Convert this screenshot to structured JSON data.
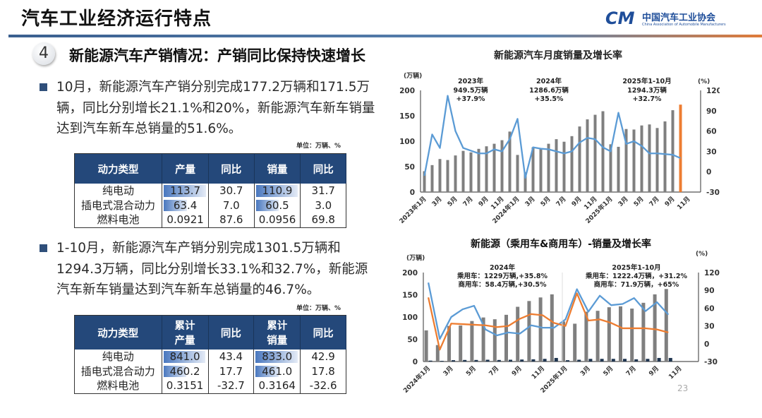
{
  "slide": {
    "title": "汽车工业经济运行特点",
    "logo": {
      "cn": "中国汽车工业协会",
      "en": "China Association of Automobile Manufacturers",
      "mark": "CM"
    },
    "section_number": "4",
    "heading": "新能源汽车产销情况：产销同比保持快速增长",
    "page_number": "23"
  },
  "paragraph1": "10月，新能源汽车产销分别完成177.2万辆和171.5万辆，同比分别增长21.1%和20%，新能源汽车新车销量达到汽车新车总销量的51.6%。",
  "paragraph2": "1-10月，新能源汽车产销分别完成1301.5万辆和1294.3万辆，同比分别增长33.1%和32.7%，新能源汽车新车销量达到汽车新车总销量的46.7%。",
  "table1": {
    "unit": "单位：万辆、%",
    "headers": [
      "动力类型",
      "产量",
      "同比",
      "销量",
      "同比"
    ],
    "rows": [
      [
        "纯电动",
        "113.7",
        "30.7",
        "110.9",
        "31.7"
      ],
      [
        "插电式混合动力",
        "63.4",
        "7.0",
        "60.5",
        "3.0"
      ],
      [
        "燃料电池",
        "0.0921",
        "87.6",
        "0.0956",
        "69.8"
      ]
    ]
  },
  "table2": {
    "unit": "单位：万辆、%",
    "headers": [
      "动力类型",
      "累计\n产量",
      "同比",
      "累计\n销量",
      "同比"
    ],
    "rows": [
      [
        "纯电动",
        "841.0",
        "43.4",
        "833.0",
        "42.9"
      ],
      [
        "插电式混合动力",
        "460.2",
        "17.7",
        "461.0",
        "17.8"
      ],
      [
        "燃料电池",
        "0.3151",
        "-32.7",
        "0.3164",
        "-32.6"
      ]
    ]
  },
  "chart_data": [
    {
      "type": "bar+line",
      "title": "新能源汽车月度销量及增长率",
      "ylabel": "(万辆)",
      "y2label": "(%)",
      "ylim": [
        0,
        200
      ],
      "y2lim": [
        -30,
        120
      ],
      "yticks": [
        "0",
        "50",
        "100",
        "150",
        "200"
      ],
      "y2ticks": [
        "-30",
        "0",
        "30",
        "60",
        "90",
        "120"
      ],
      "xticklabels": [
        "2023年1月",
        "3月",
        "5月",
        "7月",
        "9月",
        "11月",
        "2024年1月",
        "3月",
        "5月",
        "7月",
        "9月",
        "11月",
        "2025年1月",
        "3月",
        "5月",
        "7月",
        "9月",
        "11月"
      ],
      "category_count": 36,
      "grid": false,
      "colors": {
        "bars": "#808080",
        "highlight_bar": "#ed7d31",
        "line": "#5b9bd5"
      },
      "series": [
        {
          "kind": "bar",
          "values": [
            41,
            53,
            65,
            63,
            72,
            81,
            78,
            85,
            90,
            95,
            102,
            119,
            73,
            39,
            88,
            85,
            95,
            104,
            99,
            110,
            129,
            143,
            152,
            159,
            94,
            89,
            124,
            123,
            131,
            133,
            126,
            139,
            161,
            172
          ]
        },
        {
          "kind": "line",
          "axis": "right",
          "values": [
            -6,
            55,
            35,
            112,
            60,
            35,
            31,
            27,
            27,
            33,
            30,
            48,
            78,
            -9,
            36,
            34,
            33,
            30,
            27,
            30,
            43,
            50,
            48,
            36,
            30,
            87,
            41,
            45,
            38,
            27,
            27,
            26,
            25,
            20
          ]
        }
      ],
      "annotations": [
        {
          "lines": [
            "2023年",
            "949.5万辆",
            "+37.9%"
          ]
        },
        {
          "lines": [
            "2024年",
            "1286.6万辆",
            "+35.5%"
          ]
        },
        {
          "lines": [
            "2025年1-10月",
            "1294.3万辆",
            "+32.7%"
          ]
        }
      ]
    },
    {
      "type": "bar+line",
      "title": "新能源（乘用车&商用车）-销量及增长率",
      "ylabel": "(万辆)",
      "y2label": "(%)",
      "ylim": [
        0,
        200
      ],
      "y2lim": [
        -30,
        120
      ],
      "yticks": [
        "0",
        "50",
        "100",
        "150",
        "200"
      ],
      "y2ticks": [
        "-30",
        "0",
        "30",
        "60",
        "90",
        "120"
      ],
      "xticklabels": [
        "2024年1月",
        "3月",
        "5月",
        "7月",
        "9月",
        "11月",
        "2025年1月",
        "3月",
        "5月",
        "7月",
        "9月",
        "11月"
      ],
      "category_count": 24,
      "grid": false,
      "colors": {
        "passenger_bar": "#808080",
        "commercial_bar": "#1f3550",
        "blue_line": "#5b9bd5",
        "orange_line": "#ed7d31"
      },
      "series": [
        {
          "kind": "bar",
          "values": [
            70,
            37,
            80,
            81,
            91,
            99,
            95,
            105,
            123,
            136,
            144,
            151,
            90,
            85,
            112,
            114,
            122,
            124,
            119,
            132,
            151,
            163
          ]
        },
        {
          "kind": "bar",
          "values": [
            2,
            1.5,
            3,
            3.5,
            3.5,
            4,
            3.5,
            4,
            4.5,
            5,
            6,
            8,
            3,
            4,
            6,
            6,
            6,
            6,
            5,
            6,
            8,
            8
          ]
        },
        {
          "kind": "line",
          "axis": "right",
          "color": "blue_line",
          "values": [
            103,
            8,
            45,
            58,
            64,
            24,
            14,
            19,
            17,
            31,
            27,
            27,
            41,
            92,
            54,
            81,
            65,
            67,
            77,
            55,
            70,
            49
          ]
        },
        {
          "kind": "line",
          "axis": "right",
          "color": "orange_line",
          "values": [
            78,
            -10,
            34,
            33,
            32,
            31,
            28,
            30,
            42,
            50,
            48,
            35,
            30,
            85,
            39,
            41,
            35,
            26,
            26,
            26,
            24,
            19
          ]
        }
      ],
      "annotations": [
        {
          "lines": [
            "2024年",
            "乘用车：1229万辆,+35.8%",
            "商用车：58.4万辆,+30.5%"
          ]
        },
        {
          "lines": [
            "2025年1-10月",
            "乘用车：1222.4万辆，+31.2%",
            "商用车：71.9万辆，+65%"
          ]
        }
      ]
    }
  ]
}
